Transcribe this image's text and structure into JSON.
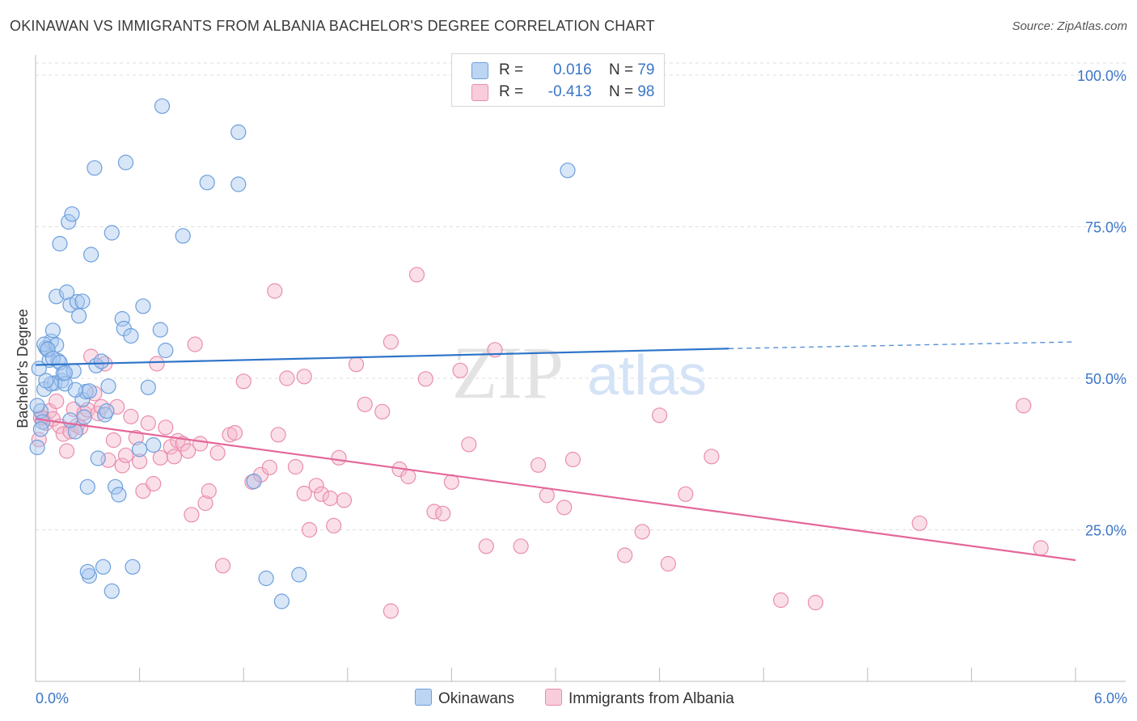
{
  "title": "OKINAWAN VS IMMIGRANTS FROM ALBANIA BACHELOR'S DEGREE CORRELATION CHART",
  "source": "Source: ZipAtlas.com",
  "watermark": {
    "zip": "ZIP",
    "atlas": "atlas"
  },
  "legend": {
    "okinawan": {
      "r_label": "R =",
      "r_value": "0.016",
      "n_label": "N =",
      "n_value": "79"
    },
    "albania": {
      "r_label": "R =",
      "r_value": "-0.413",
      "n_label": "N =",
      "n_value": "98"
    }
  },
  "bottom_legend": {
    "okinawan": "Okinawans",
    "albania": "Immigrants from Albania"
  },
  "colors": {
    "okinawan_fill": "#a8c8f0",
    "okinawan_stroke": "#6c9fdc",
    "okinawan_line": "#2e74c9",
    "albania_fill": "#f5b7cb",
    "albania_stroke": "#ea8dac",
    "albania_line": "#e4679a",
    "axis_text": "#3b76c8",
    "grid": "#dddddd"
  },
  "chart_data": {
    "type": "scatter",
    "title": "OKINAWAN VS IMMIGRANTS FROM ALBANIA BACHELOR'S DEGREE CORRELATION CHART",
    "xlabel": "",
    "ylabel": "Bachelor's Degree",
    "xlim": [
      0,
      6
    ],
    "ylim": [
      0,
      102
    ],
    "x_tick_labels": [
      "0.0%",
      "6.0%"
    ],
    "y_ticks": [
      25,
      50,
      75,
      100
    ],
    "y_tick_labels": [
      "25.0%",
      "50.0%",
      "75.0%",
      "100.0%"
    ],
    "grid": true,
    "series": [
      {
        "name": "Okinawans",
        "r": 0.016,
        "n": 79,
        "trend": {
          "x0": 0.0,
          "y0": 52.2,
          "x1": 4.0,
          "y1": 54.9,
          "dashed_to_x": 6.0,
          "dashed_to_y": 56.0
        },
        "points": [
          [
            0.01,
            38.6
          ],
          [
            0.03,
            44.6
          ],
          [
            0.04,
            42.8
          ],
          [
            0.05,
            48.2
          ],
          [
            0.06,
            55.0
          ],
          [
            0.07,
            54.7
          ],
          [
            0.08,
            53.0
          ],
          [
            0.09,
            56.1
          ],
          [
            0.1,
            57.9
          ],
          [
            0.11,
            49.2
          ],
          [
            0.12,
            63.5
          ],
          [
            0.13,
            52.9
          ],
          [
            0.14,
            72.2
          ],
          [
            0.15,
            49.6
          ],
          [
            0.16,
            50.8
          ],
          [
            0.17,
            49.1
          ],
          [
            0.18,
            64.2
          ],
          [
            0.19,
            75.8
          ],
          [
            0.2,
            62.1
          ],
          [
            0.21,
            77.1
          ],
          [
            0.22,
            51.2
          ],
          [
            0.23,
            41.2
          ],
          [
            0.24,
            62.6
          ],
          [
            0.25,
            60.3
          ],
          [
            0.27,
            46.5
          ],
          [
            0.28,
            43.6
          ],
          [
            0.29,
            47.8
          ],
          [
            0.3,
            32.1
          ],
          [
            0.31,
            47.9
          ],
          [
            0.32,
            70.4
          ],
          [
            0.34,
            84.7
          ],
          [
            0.35,
            52.1
          ],
          [
            0.36,
            36.8
          ],
          [
            0.38,
            52.8
          ],
          [
            0.4,
            44.0
          ],
          [
            0.42,
            48.7
          ],
          [
            0.44,
            74.0
          ],
          [
            0.46,
            32.1
          ],
          [
            0.5,
            59.8
          ],
          [
            0.51,
            58.2
          ],
          [
            0.52,
            85.6
          ],
          [
            0.56,
            18.9
          ],
          [
            0.62,
            61.9
          ],
          [
            0.65,
            48.5
          ],
          [
            0.68,
            39.0
          ],
          [
            0.72,
            58.0
          ],
          [
            0.73,
            94.9
          ],
          [
            0.75,
            54.6
          ],
          [
            0.85,
            73.5
          ],
          [
            0.99,
            82.3
          ],
          [
            1.17,
            82.0
          ],
          [
            1.26,
            33.0
          ],
          [
            1.33,
            17.0
          ],
          [
            1.42,
            13.2
          ],
          [
            1.52,
            17.6
          ],
          [
            3.07,
            84.3
          ],
          [
            0.05,
            55.6
          ],
          [
            0.09,
            49.1
          ],
          [
            0.12,
            55.5
          ],
          [
            0.2,
            43.1
          ],
          [
            0.31,
            17.4
          ],
          [
            0.39,
            18.9
          ],
          [
            0.44,
            14.9
          ],
          [
            0.6,
            38.3
          ],
          [
            0.01,
            45.5
          ],
          [
            0.02,
            51.6
          ],
          [
            0.03,
            41.6
          ],
          [
            0.06,
            49.6
          ],
          [
            0.07,
            54.8
          ],
          [
            0.1,
            53.3
          ],
          [
            0.14,
            52.6
          ],
          [
            0.17,
            50.9
          ],
          [
            0.23,
            48.1
          ],
          [
            0.27,
            62.7
          ],
          [
            0.3,
            18.1
          ],
          [
            0.41,
            44.6
          ],
          [
            0.48,
            30.8
          ],
          [
            0.55,
            57.0
          ],
          [
            1.17,
            90.6
          ]
        ]
      },
      {
        "name": "Immigrants from Albania",
        "r": -0.413,
        "n": 98,
        "trend": {
          "x0": 0.0,
          "y0": 43.3,
          "x1": 6.0,
          "y1": 20.0
        },
        "points": [
          [
            0.02,
            39.9
          ],
          [
            0.04,
            43.5
          ],
          [
            0.06,
            42.6
          ],
          [
            0.08,
            44.6
          ],
          [
            0.1,
            43.3
          ],
          [
            0.12,
            46.2
          ],
          [
            0.14,
            42.1
          ],
          [
            0.16,
            40.8
          ],
          [
            0.18,
            38.0
          ],
          [
            0.2,
            41.2
          ],
          [
            0.22,
            44.9
          ],
          [
            0.24,
            42.2
          ],
          [
            0.26,
            41.9
          ],
          [
            0.28,
            44.3
          ],
          [
            0.3,
            44.8
          ],
          [
            0.32,
            53.6
          ],
          [
            0.34,
            47.5
          ],
          [
            0.36,
            44.2
          ],
          [
            0.38,
            45.3
          ],
          [
            0.4,
            52.4
          ],
          [
            0.42,
            36.5
          ],
          [
            0.45,
            39.8
          ],
          [
            0.47,
            45.3
          ],
          [
            0.5,
            35.6
          ],
          [
            0.52,
            37.3
          ],
          [
            0.55,
            43.7
          ],
          [
            0.58,
            40.2
          ],
          [
            0.6,
            36.3
          ],
          [
            0.62,
            31.4
          ],
          [
            0.65,
            42.6
          ],
          [
            0.68,
            32.6
          ],
          [
            0.7,
            52.4
          ],
          [
            0.72,
            36.9
          ],
          [
            0.75,
            41.9
          ],
          [
            0.78,
            38.7
          ],
          [
            0.8,
            37.1
          ],
          [
            0.82,
            39.7
          ],
          [
            0.85,
            39.2
          ],
          [
            0.88,
            38.0
          ],
          [
            0.9,
            27.5
          ],
          [
            0.92,
            55.6
          ],
          [
            0.95,
            39.2
          ],
          [
            0.98,
            29.4
          ],
          [
            1.0,
            31.4
          ],
          [
            1.05,
            37.7
          ],
          [
            1.08,
            19.1
          ],
          [
            1.12,
            40.7
          ],
          [
            1.15,
            41.0
          ],
          [
            1.2,
            49.5
          ],
          [
            1.25,
            32.9
          ],
          [
            1.3,
            34.1
          ],
          [
            1.35,
            35.3
          ],
          [
            1.38,
            64.4
          ],
          [
            1.4,
            40.7
          ],
          [
            1.45,
            50.0
          ],
          [
            1.5,
            35.4
          ],
          [
            1.55,
            31.0
          ],
          [
            1.58,
            25.0
          ],
          [
            1.62,
            32.3
          ],
          [
            1.65,
            30.9
          ],
          [
            1.7,
            30.2
          ],
          [
            1.72,
            25.7
          ],
          [
            1.75,
            36.9
          ],
          [
            1.78,
            29.9
          ],
          [
            1.85,
            52.3
          ],
          [
            1.9,
            45.7
          ],
          [
            2.0,
            44.5
          ],
          [
            2.05,
            56.0
          ],
          [
            2.1,
            35.0
          ],
          [
            2.15,
            33.8
          ],
          [
            2.2,
            67.1
          ],
          [
            2.25,
            49.9
          ],
          [
            2.3,
            28.0
          ],
          [
            2.35,
            27.7
          ],
          [
            2.4,
            32.9
          ],
          [
            2.45,
            51.3
          ],
          [
            2.5,
            39.1
          ],
          [
            2.6,
            22.3
          ],
          [
            2.65,
            54.7
          ],
          [
            2.8,
            22.3
          ],
          [
            2.9,
            35.7
          ],
          [
            2.95,
            30.7
          ],
          [
            3.05,
            28.7
          ],
          [
            3.1,
            36.6
          ],
          [
            3.4,
            20.8
          ],
          [
            3.5,
            24.7
          ],
          [
            3.6,
            43.9
          ],
          [
            3.65,
            19.4
          ],
          [
            3.75,
            30.9
          ],
          [
            3.9,
            37.1
          ],
          [
            4.3,
            13.4
          ],
          [
            4.5,
            13.0
          ],
          [
            5.1,
            26.1
          ],
          [
            5.7,
            45.5
          ],
          [
            5.8,
            22.0
          ],
          [
            0.03,
            43.5
          ],
          [
            1.55,
            50.3
          ],
          [
            2.05,
            11.6
          ]
        ]
      }
    ]
  }
}
